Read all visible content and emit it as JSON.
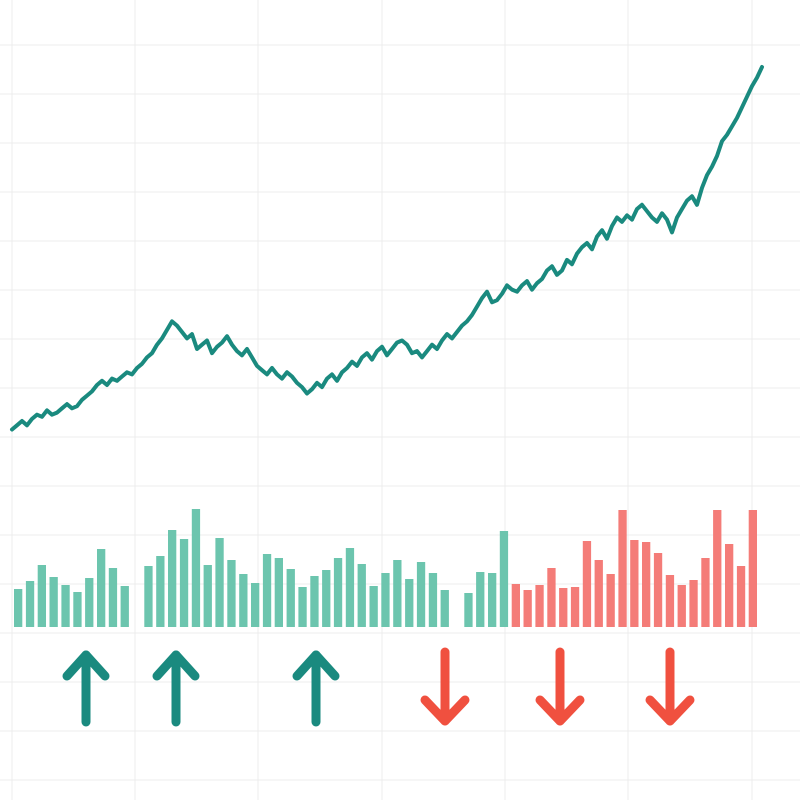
{
  "chart_data": [
    {
      "type": "line",
      "title": "",
      "xlabel": "",
      "ylabel": "",
      "grid": true,
      "legend": "none",
      "x": [
        0,
        1,
        2,
        3,
        4,
        5,
        6,
        7,
        8,
        9,
        10,
        11,
        12,
        13,
        14,
        15,
        16,
        17,
        18,
        19,
        20,
        21,
        22,
        23,
        24,
        25,
        26,
        27,
        28,
        29,
        30,
        31,
        32,
        33,
        34,
        35,
        36,
        37,
        38,
        39,
        40,
        41,
        42,
        43,
        44,
        45,
        46,
        47,
        48,
        49,
        50,
        51,
        52,
        53,
        54,
        55,
        56,
        57,
        58,
        59,
        60,
        61,
        62,
        63,
        64,
        65,
        66,
        67,
        68,
        69,
        70,
        71,
        72,
        73,
        74,
        75,
        76,
        77,
        78,
        79,
        80,
        81,
        82,
        83,
        84,
        85,
        86,
        87,
        88,
        89,
        90,
        91,
        92,
        93,
        94,
        95,
        96,
        97,
        98,
        99,
        100,
        101,
        102,
        103,
        104,
        105,
        106,
        107,
        108,
        109,
        110,
        111,
        112,
        113,
        114,
        115,
        116,
        117,
        118,
        119,
        120,
        121,
        122,
        123,
        124,
        125,
        126,
        127,
        128,
        129,
        130,
        131,
        132,
        133,
        134,
        135,
        136,
        137,
        138,
        139,
        140,
        141,
        142,
        143,
        144,
        145,
        146,
        147,
        148,
        149,
        150
      ],
      "series": [
        {
          "color": "#1a8a7f",
          "values": [
            4,
            6,
            8,
            6,
            9,
            11,
            10,
            13,
            11,
            12,
            14,
            16,
            14,
            15,
            18,
            20,
            22,
            25,
            27,
            25,
            28,
            27,
            29,
            31,
            30,
            33,
            35,
            38,
            40,
            44,
            47,
            51,
            55,
            53,
            50,
            47,
            49,
            42,
            44,
            46,
            40,
            43,
            45,
            48,
            44,
            41,
            39,
            42,
            38,
            34,
            32,
            30,
            33,
            30,
            28,
            31,
            29,
            26,
            24,
            21,
            23,
            26,
            24,
            28,
            30,
            27,
            31,
            33,
            36,
            34,
            38,
            40,
            37,
            41,
            43,
            39,
            42,
            45,
            46,
            44,
            40,
            41,
            38,
            41,
            44,
            42,
            46,
            49,
            47,
            50,
            53,
            55,
            58,
            62,
            66,
            69,
            64,
            65,
            68,
            72,
            70,
            69,
            72,
            74,
            70,
            73,
            75,
            79,
            81,
            77,
            79,
            84,
            82,
            87,
            90,
            92,
            89,
            95,
            98,
            94,
            100,
            104,
            102,
            105,
            103,
            108,
            110,
            107,
            104,
            102,
            106,
            103,
            97,
            104,
            108,
            112,
            114,
            110,
            118,
            124,
            128,
            133,
            140,
            143,
            147,
            151,
            156,
            161,
            166,
            170,
            175
          ]
        }
      ]
    },
    {
      "type": "bar",
      "title": "",
      "xlabel": "",
      "ylabel": "",
      "grid": true,
      "legend": "none",
      "categories": [
        "1",
        "2",
        "3",
        "4",
        "5",
        "6",
        "7",
        "8",
        "9",
        "10",
        "11",
        "12",
        "13",
        "14",
        "15",
        "16",
        "17",
        "18",
        "19",
        "20",
        "21",
        "22",
        "23",
        "24",
        "25",
        "26",
        "27",
        "28",
        "29",
        "30",
        "31",
        "32",
        "33",
        "34",
        "35",
        "36",
        "37",
        "38",
        "39",
        "40",
        "41",
        "42",
        "43",
        "44",
        "45",
        "46",
        "47",
        "48",
        "49",
        "50",
        "51",
        "52",
        "53",
        "54",
        "55",
        "56",
        "57",
        "58",
        "59",
        "60",
        "61",
        "62",
        "63"
      ],
      "up_color": "#6cc5ae",
      "down_color": "#f47c78",
      "values": [
        38,
        46,
        62,
        50,
        42,
        35,
        49,
        78,
        59,
        41,
        0,
        61,
        71,
        97,
        88,
        118,
        62,
        89,
        67,
        53,
        44,
        73,
        69,
        58,
        40,
        51,
        57,
        69,
        79,
        63,
        41,
        54,
        67,
        48,
        65,
        54,
        37,
        0,
        34,
        55,
        54,
        96,
        43,
        37,
        42,
        59,
        39,
        40,
        86,
        67,
        53,
        117,
        87,
        85,
        74,
        52,
        42,
        47,
        69,
        117,
        83,
        61,
        117
      ],
      "direction": [
        "up",
        "up",
        "up",
        "up",
        "up",
        "up",
        "up",
        "up",
        "up",
        "up",
        "gap",
        "up",
        "up",
        "up",
        "up",
        "up",
        "up",
        "up",
        "up",
        "up",
        "up",
        "up",
        "up",
        "up",
        "up",
        "up",
        "up",
        "up",
        "up",
        "up",
        "up",
        "up",
        "up",
        "up",
        "up",
        "up",
        "up",
        "gap",
        "up",
        "up",
        "up",
        "up",
        "down",
        "down",
        "down",
        "down",
        "down",
        "down",
        "down",
        "down",
        "down",
        "down",
        "down",
        "down",
        "down",
        "down",
        "down",
        "down",
        "down",
        "down",
        "down",
        "down",
        "down"
      ]
    }
  ],
  "arrows": [
    {
      "direction": "up",
      "color": "#1a8a7f",
      "icon": "arrow-up-icon"
    },
    {
      "direction": "up",
      "color": "#1a8a7f",
      "icon": "arrow-up-icon"
    },
    {
      "direction": "up",
      "color": "#1a8a7f",
      "icon": "arrow-up-icon"
    },
    {
      "direction": "down",
      "color": "#f0503f",
      "icon": "arrow-down-icon"
    },
    {
      "direction": "down",
      "color": "#f0503f",
      "icon": "arrow-down-icon"
    },
    {
      "direction": "down",
      "color": "#f0503f",
      "icon": "arrow-down-icon"
    }
  ],
  "colors": {
    "grid": "#ececec",
    "background": "#ffffff"
  }
}
